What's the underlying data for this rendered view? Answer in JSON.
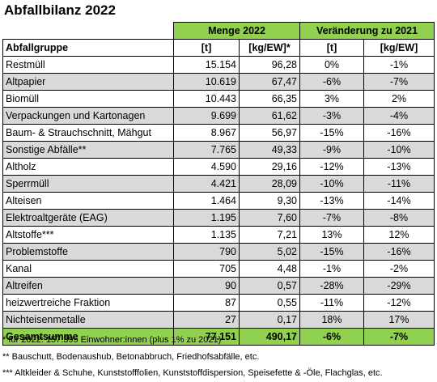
{
  "title": "Abfallbilanz 2022",
  "table": {
    "group_headers": {
      "menge": "Menge 2022",
      "veraenderung": "Veränderung zu 2021"
    },
    "columns": [
      "Abfallgruppe",
      "[t]",
      "[kg/EW]*",
      "[t]",
      "[kg/EW]"
    ],
    "rows": [
      {
        "name": "Restmüll",
        "t": "15.154",
        "kg": "96,28",
        "dt": "0%",
        "dkg": "-1%"
      },
      {
        "name": "Altpapier",
        "t": "10.619",
        "kg": "67,47",
        "dt": "-6%",
        "dkg": "-7%"
      },
      {
        "name": "Biomüll",
        "t": "10.443",
        "kg": "66,35",
        "dt": "3%",
        "dkg": "2%"
      },
      {
        "name": "Verpackungen und Kartonagen",
        "t": "9.699",
        "kg": "61,62",
        "dt": "-3%",
        "dkg": "-4%"
      },
      {
        "name": "Baum- & Strauchschnitt, Mähgut",
        "t": "8.967",
        "kg": "56,97",
        "dt": "-15%",
        "dkg": "-16%"
      },
      {
        "name": "Sonstige Abfälle**",
        "t": "7.765",
        "kg": "49,33",
        "dt": "-9%",
        "dkg": "-10%"
      },
      {
        "name": "Altholz",
        "t": "4.590",
        "kg": "29,16",
        "dt": "-12%",
        "dkg": "-13%"
      },
      {
        "name": "Sperrmüll",
        "t": "4.421",
        "kg": "28,09",
        "dt": "-10%",
        "dkg": "-11%"
      },
      {
        "name": "Alteisen",
        "t": "1.464",
        "kg": "9,30",
        "dt": "-13%",
        "dkg": "-14%"
      },
      {
        "name": "Elektroaltgeräte (EAG)",
        "t": "1.195",
        "kg": "7,60",
        "dt": "-7%",
        "dkg": "-8%"
      },
      {
        "name": "Altstoffe***",
        "t": "1.135",
        "kg": "7,21",
        "dt": "13%",
        "dkg": "12%"
      },
      {
        "name": "Problemstoffe",
        "t": "790",
        "kg": "5,02",
        "dt": "-15%",
        "dkg": "-16%"
      },
      {
        "name": "Kanal",
        "t": "705",
        "kg": "4,48",
        "dt": "-1%",
        "dkg": "-2%"
      },
      {
        "name": "Altreifen",
        "t": "90",
        "kg": "0,57",
        "dt": "-28%",
        "dkg": "-29%"
      },
      {
        "name": "heizwertreiche Fraktion",
        "t": "87",
        "kg": "0,55",
        "dt": "-11%",
        "dkg": "-12%"
      },
      {
        "name": "Nichteisenmetalle",
        "t": "27",
        "kg": "0,17",
        "dt": "18%",
        "dkg": "17%"
      }
    ],
    "total": {
      "name": "Gesamtsumme",
      "t": "77.151",
      "kg": "490,17",
      "dt": "-6%",
      "dkg": "-7%"
    }
  },
  "footnotes": [
    "* für 2022: 157.395 Einwohner:innen (plus 1% zu 2021)",
    "** Bauschutt, Bodenaushub, Betonabbruch, Friedhofsabfälle, etc.",
    "*** Altkleider & Schuhe, Kunststofffolien, Kunststoffdispersion, Speisefette & -Öle, Flachglas, etc."
  ],
  "colors": {
    "header_green": "#92d050",
    "stripe_gray": "#d9d9d9"
  }
}
